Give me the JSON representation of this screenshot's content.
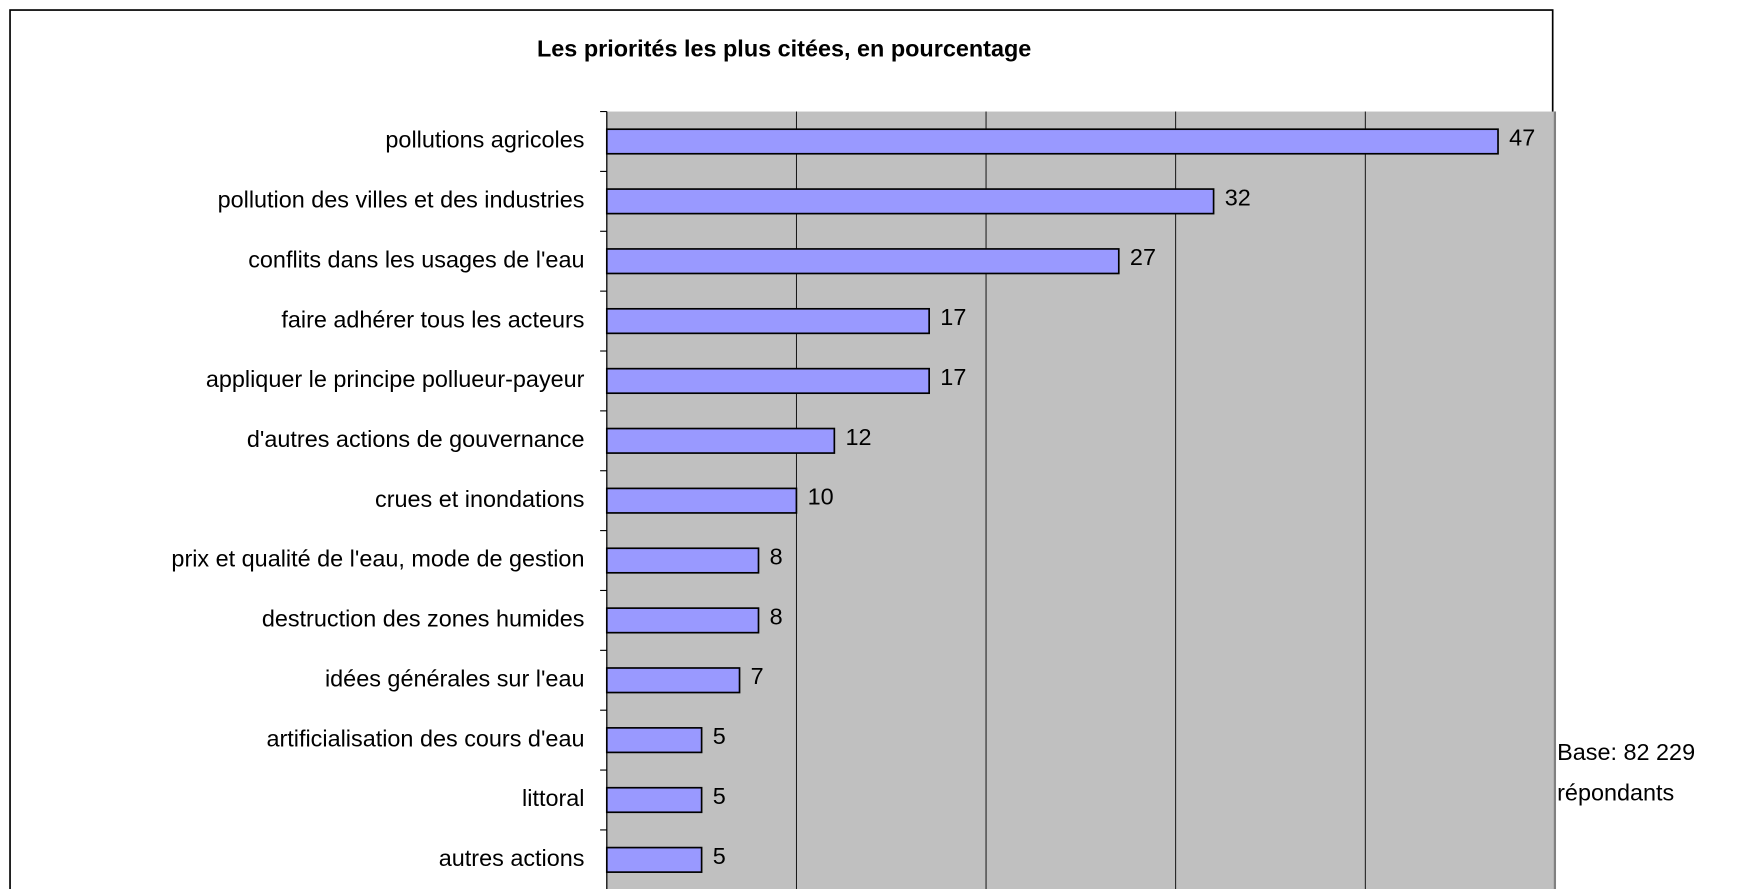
{
  "chart_data": {
    "type": "bar",
    "orientation": "horizontal",
    "title": "Les priorités les plus citées, en pourcentage",
    "categories": [
      "pollutions agricoles",
      "pollution des villes et des industries",
      "conflits dans les usages de l'eau",
      "faire adhérer tous les acteurs",
      "appliquer le principe pollueur-payeur",
      "d'autres actions de gouvernance",
      "crues et inondations",
      "prix et qualité de l'eau, mode de gestion",
      "destruction des zones humides",
      "idées générales sur l'eau",
      "artificialisation des cours d'eau",
      "littoral",
      "autres actions"
    ],
    "values": [
      47,
      32,
      27,
      17,
      17,
      12,
      10,
      8,
      8,
      7,
      5,
      5,
      5
    ],
    "color": "#9999ff",
    "xlim": [
      0,
      50
    ],
    "xticks": [
      0,
      10,
      20,
      30,
      40,
      50
    ],
    "grid": true,
    "annotation": [
      "Base: 82 229",
      "répondants"
    ]
  }
}
